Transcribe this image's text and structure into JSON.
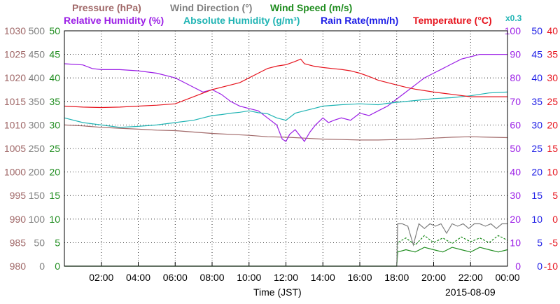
{
  "chart_data": {
    "type": "line",
    "header_row1": [
      {
        "text": "Pressure (hPa)",
        "color": "#a06868"
      },
      {
        "text": "Wind Direction (°)",
        "color": "#808080"
      },
      {
        "text": "Wind Speed (m/s)",
        "color": "#1e8c1e"
      }
    ],
    "header_row2": [
      {
        "text": "Relative Humidity (%)",
        "color": "#9b1ee6"
      },
      {
        "text": "Absolute Humidity (g/m³)",
        "color": "#20b4b4"
      },
      {
        "text": "Rain Rate(mm/h)",
        "color": "#1e1ee6"
      },
      {
        "text": "Temperature (°C)",
        "color": "#e6141e"
      }
    ],
    "rain_scale_note": "x0.3",
    "xlabel": "Time (JST)",
    "date_label": "2015-08-09",
    "x_tick_labels": [
      "02:00",
      "04:00",
      "06:00",
      "08:00",
      "10:00",
      "12:00",
      "14:00",
      "16:00",
      "18:00",
      "20:00",
      "22:00",
      "00:00"
    ],
    "x_range_hours": [
      0,
      24
    ],
    "left_axes": [
      {
        "name": "pressure",
        "color": "#a06868",
        "labels": [
          "980",
          "985",
          "990",
          "995",
          "1000",
          "1005",
          "1010",
          "1015",
          "1020",
          "1025",
          "1030"
        ]
      },
      {
        "name": "wind_direction",
        "color": "#808080",
        "labels": [
          "0",
          "50",
          "100",
          "150",
          "200",
          "250",
          "300",
          "350",
          "400",
          "450",
          "500"
        ]
      },
      {
        "name": "wind_speed",
        "color": "#1e8c1e",
        "labels": [
          "0",
          "5",
          "10",
          "15",
          "20",
          "25",
          "30",
          "35",
          "40",
          "45",
          "50"
        ]
      }
    ],
    "right_axes": [
      {
        "name": "relative_humidity",
        "color": "#9b1ee6",
        "labels": [
          "0",
          "10",
          "20",
          "30",
          "40",
          "50",
          "60",
          "70",
          "80",
          "90",
          "100"
        ]
      },
      {
        "name": "rain_rate",
        "color": "#1e1ee6",
        "labels": [
          "0",
          "5",
          "10",
          "15",
          "20",
          "25",
          "30",
          "35",
          "40",
          "45",
          "50"
        ]
      },
      {
        "name": "temperature",
        "color": "#e6141e",
        "labels": [
          "-10",
          "-5",
          "0",
          "5",
          "10",
          "15",
          "20",
          "25",
          "30",
          "35",
          "40"
        ]
      }
    ],
    "grid": true,
    "series": [
      {
        "name": "Pressure",
        "axis": "pressure",
        "ymin": 980,
        "ymax": 1030,
        "color": "#a06868",
        "x": [
          0,
          1,
          2,
          3,
          4,
          5,
          6,
          7,
          8,
          9,
          10,
          11,
          12,
          13,
          14,
          15,
          16,
          17,
          18,
          19,
          20,
          21,
          22,
          23,
          24
        ],
        "y": [
          1010,
          1009.8,
          1009.5,
          1009.3,
          1009.1,
          1008.9,
          1008.8,
          1008.5,
          1008.2,
          1008,
          1007.8,
          1007.5,
          1007.4,
          1007.2,
          1007,
          1006.9,
          1006.8,
          1006.8,
          1006.9,
          1007,
          1007.2,
          1007.4,
          1007.5,
          1007.4,
          1007.3
        ]
      },
      {
        "name": "Relative Humidity",
        "axis": "relative_humidity",
        "ymin": 0,
        "ymax": 100,
        "color": "#9b1ee6",
        "x": [
          0,
          1,
          1.5,
          2,
          3,
          4,
          5,
          6,
          6.5,
          7,
          7.5,
          8,
          8.5,
          9,
          9.5,
          10,
          10.5,
          11,
          11.5,
          11.8,
          12,
          12.2,
          12.5,
          12.8,
          13,
          13.3,
          13.6,
          14,
          14.3,
          14.6,
          15,
          15.5,
          16,
          16.5,
          17,
          17.5,
          18,
          18.5,
          19,
          19.5,
          20,
          20.5,
          21,
          21.5,
          22,
          22.5,
          23,
          24
        ],
        "y": [
          86,
          85.5,
          84,
          83.5,
          83.5,
          83,
          82,
          80,
          78,
          76,
          74,
          75,
          73,
          70,
          68,
          67,
          66,
          63,
          60,
          54,
          53,
          56,
          58,
          55,
          53,
          57,
          60,
          63,
          61,
          62,
          63,
          62,
          65,
          64,
          66,
          68,
          71,
          74,
          77,
          80,
          82,
          84,
          86,
          88,
          89,
          90,
          90,
          90
        ]
      },
      {
        "name": "Absolute Humidity",
        "axis": "wind_speed",
        "ymin": 0,
        "ymax": 50,
        "color": "#20b4b4",
        "x": [
          0,
          1,
          2,
          3,
          4,
          5,
          6,
          7,
          7.5,
          8,
          8.5,
          9,
          9.5,
          10,
          10.5,
          11,
          11.5,
          12,
          12.5,
          13,
          13.5,
          14,
          15,
          16,
          17,
          17.5,
          18,
          19,
          20,
          21,
          22,
          23,
          24
        ],
        "y": [
          31.5,
          30.5,
          30,
          29.5,
          29.7,
          30,
          30.5,
          31,
          31.5,
          32,
          32.2,
          32.5,
          32.7,
          33,
          32.6,
          32.4,
          31.5,
          31,
          32.5,
          33,
          33.5,
          34,
          34.3,
          34.5,
          34.3,
          34.6,
          34.8,
          35.2,
          35.6,
          35.8,
          36.2,
          36.8,
          37
        ]
      },
      {
        "name": "Temperature",
        "axis": "temperature",
        "ymin": -10,
        "ymax": 40,
        "color": "#e6141e",
        "x": [
          0,
          1,
          2,
          3,
          4,
          5,
          6,
          7,
          8,
          9,
          9.5,
          10,
          10.5,
          11,
          11.5,
          12,
          12.5,
          12.8,
          13,
          13.5,
          14,
          14.5,
          15,
          15.5,
          16,
          16.5,
          17,
          17.5,
          18,
          18.5,
          19,
          20,
          21,
          22,
          23,
          24
        ],
        "y": [
          24,
          23.8,
          23.7,
          23.8,
          24,
          24.2,
          24.5,
          26,
          27.5,
          28.5,
          29,
          30,
          31,
          32,
          32.5,
          32.8,
          33.5,
          34,
          33,
          32.5,
          32.2,
          32,
          31.8,
          31.5,
          31,
          30.3,
          29.5,
          29,
          28.5,
          28,
          27.6,
          27,
          26.5,
          26,
          26,
          26
        ]
      },
      {
        "name": "Wind Speed",
        "axis": "wind_speed",
        "ymin": 0,
        "ymax": 50,
        "color": "#1e8c1e",
        "x": [
          0,
          18,
          18.05,
          18.5,
          19,
          19.5,
          20,
          20.5,
          21,
          21.5,
          22,
          22.5,
          23,
          23.5,
          24
        ],
        "y": [
          0,
          0,
          3,
          3.5,
          3,
          4,
          3.5,
          3,
          4,
          3.5,
          3,
          4,
          3.5,
          3,
          3.5
        ]
      },
      {
        "name": "Wind Speed Gust",
        "axis": "wind_speed",
        "ymin": 0,
        "ymax": 50,
        "color": "#1e8c1e",
        "dashed": true,
        "x": [
          18,
          18.05,
          18.5,
          19,
          19.5,
          20,
          20.5,
          21,
          21.5,
          22,
          22.5,
          23,
          23.5,
          24
        ],
        "y": [
          0,
          5,
          6,
          4.5,
          6.5,
          5,
          6,
          4.8,
          6.2,
          5.2,
          6,
          5,
          6.5,
          5.5
        ]
      },
      {
        "name": "Wind Direction",
        "axis": "wind_direction",
        "ymin": 0,
        "ymax": 500,
        "color": "#808080",
        "x": [
          18,
          18.05,
          18.3,
          18.6,
          18.9,
          19.2,
          19.5,
          19.8,
          20.1,
          20.4,
          20.7,
          21,
          21.3,
          21.6,
          21.9,
          22.2,
          22.5,
          22.8,
          23.1,
          23.4,
          23.7,
          24
        ],
        "y": [
          0,
          90,
          90,
          85,
          45,
          90,
          80,
          90,
          85,
          90,
          70,
          90,
          85,
          90,
          80,
          90,
          90,
          85,
          90,
          80,
          90,
          90
        ]
      }
    ]
  }
}
